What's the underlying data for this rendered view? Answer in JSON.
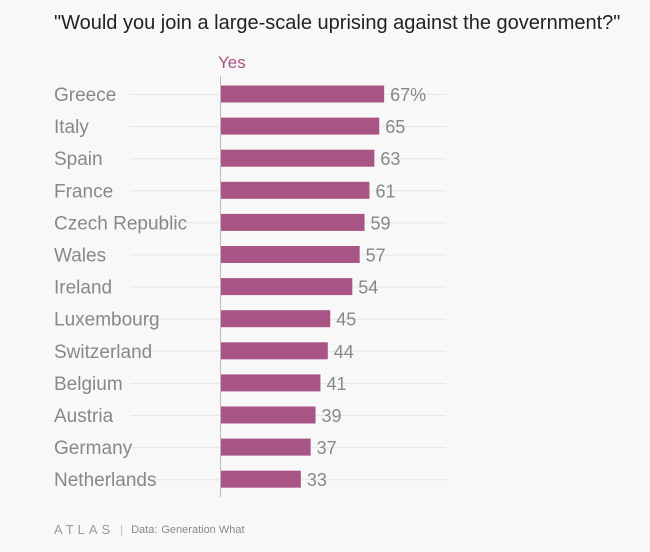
{
  "title": "\"Would you join a large-scale uprising against the government?\"",
  "footer": {
    "brand": "ATLAS",
    "separator": "|",
    "source_label": "Data:",
    "source": "Generation What"
  },
  "colors": {
    "bar": "#a85484",
    "header": "#a85484",
    "category_text": "#888888",
    "value_text": "#888888",
    "gridline": "#e6e6e6",
    "axis": "#bbbbbb"
  },
  "chart_data": {
    "type": "bar",
    "orientation": "horizontal",
    "series": [
      {
        "name": "Yes",
        "values": [
          67,
          65,
          63,
          61,
          59,
          57,
          54,
          45,
          44,
          41,
          39,
          37,
          33
        ]
      }
    ],
    "categories": [
      "Greece",
      "Italy",
      "Spain",
      "France",
      "Czech Republic",
      "Wales",
      "Ireland",
      "Luxembourg",
      "Switzerland",
      "Belgium",
      "Austria",
      "Germany",
      "Netherlands"
    ],
    "value_labels": [
      "67%",
      "65",
      "63",
      "61",
      "59",
      "57",
      "54",
      "45",
      "44",
      "41",
      "39",
      "37",
      "33"
    ],
    "xlim": [
      0,
      100
    ],
    "grid": true,
    "legend": "none"
  }
}
